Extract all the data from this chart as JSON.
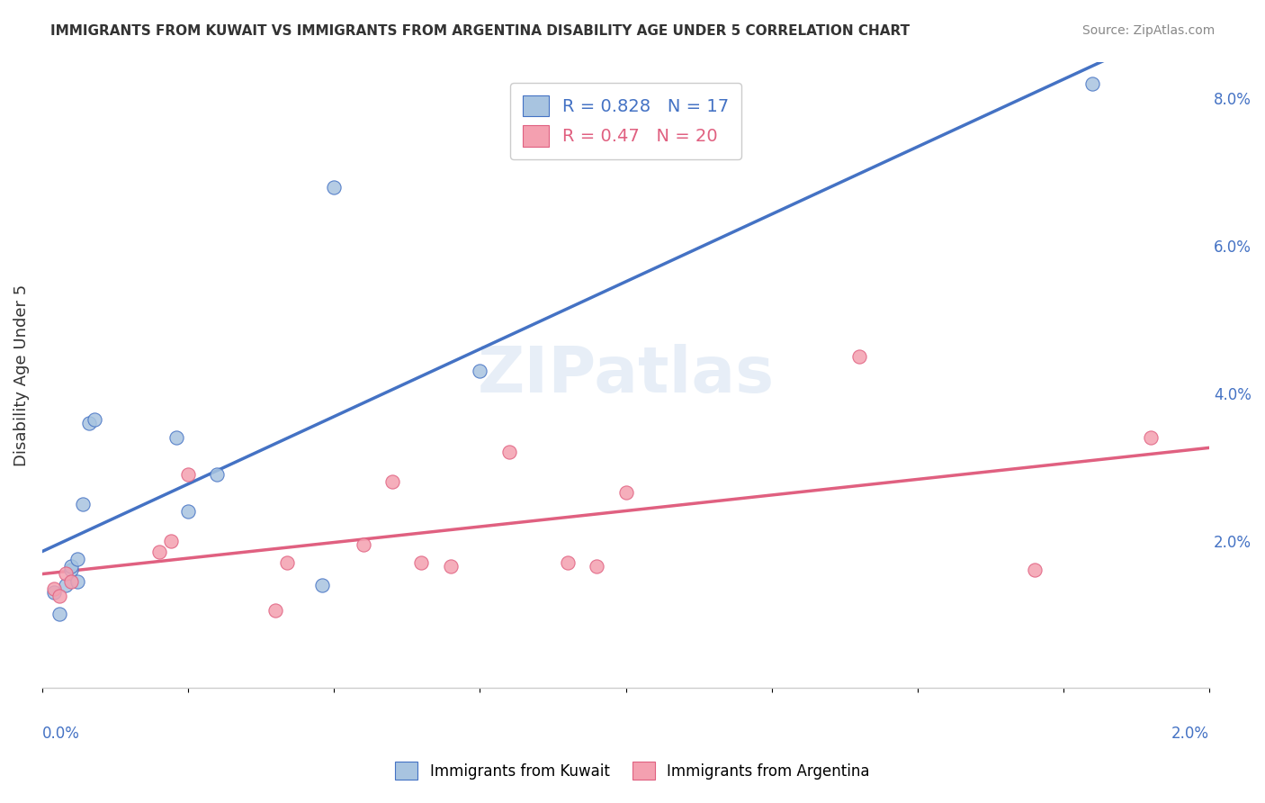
{
  "title": "IMMIGRANTS FROM KUWAIT VS IMMIGRANTS FROM ARGENTINA DISABILITY AGE UNDER 5 CORRELATION CHART",
  "source": "Source: ZipAtlas.com",
  "ylabel": "Disability Age Under 5",
  "legend_label_blue": "Immigrants from Kuwait",
  "legend_label_pink": "Immigrants from Argentina",
  "R_blue": 0.828,
  "N_blue": 17,
  "R_pink": 0.47,
  "N_pink": 20,
  "blue_color": "#a8c4e0",
  "blue_line_color": "#4472c4",
  "pink_color": "#f4a0b0",
  "pink_line_color": "#e06080",
  "xmin": 0.0,
  "xmax": 0.02,
  "ymin": 0.0,
  "ymax": 0.085,
  "right_yticks": [
    0.0,
    0.02,
    0.04,
    0.06,
    0.08
  ],
  "right_yticklabels": [
    "",
    "2.0%",
    "4.0%",
    "6.0%",
    "8.0%"
  ],
  "blue_x": [
    0.0002,
    0.0003,
    0.0004,
    0.0005,
    0.0005,
    0.0006,
    0.0006,
    0.0007,
    0.0008,
    0.0009,
    0.0023,
    0.0025,
    0.003,
    0.0048,
    0.005,
    0.0075,
    0.018
  ],
  "blue_y": [
    0.013,
    0.01,
    0.014,
    0.016,
    0.0165,
    0.0145,
    0.0175,
    0.025,
    0.036,
    0.0365,
    0.034,
    0.024,
    0.029,
    0.014,
    0.068,
    0.043,
    0.082
  ],
  "pink_x": [
    0.0002,
    0.0003,
    0.0004,
    0.0005,
    0.002,
    0.0022,
    0.0025,
    0.004,
    0.0042,
    0.0055,
    0.006,
    0.0065,
    0.007,
    0.008,
    0.009,
    0.0095,
    0.01,
    0.014,
    0.017,
    0.019
  ],
  "pink_y": [
    0.0135,
    0.0125,
    0.0155,
    0.0145,
    0.0185,
    0.02,
    0.029,
    0.0105,
    0.017,
    0.0195,
    0.028,
    0.017,
    0.0165,
    0.032,
    0.017,
    0.0165,
    0.0265,
    0.045,
    0.016,
    0.034
  ],
  "background_color": "#ffffff",
  "grid_color": "#e0e0e0"
}
